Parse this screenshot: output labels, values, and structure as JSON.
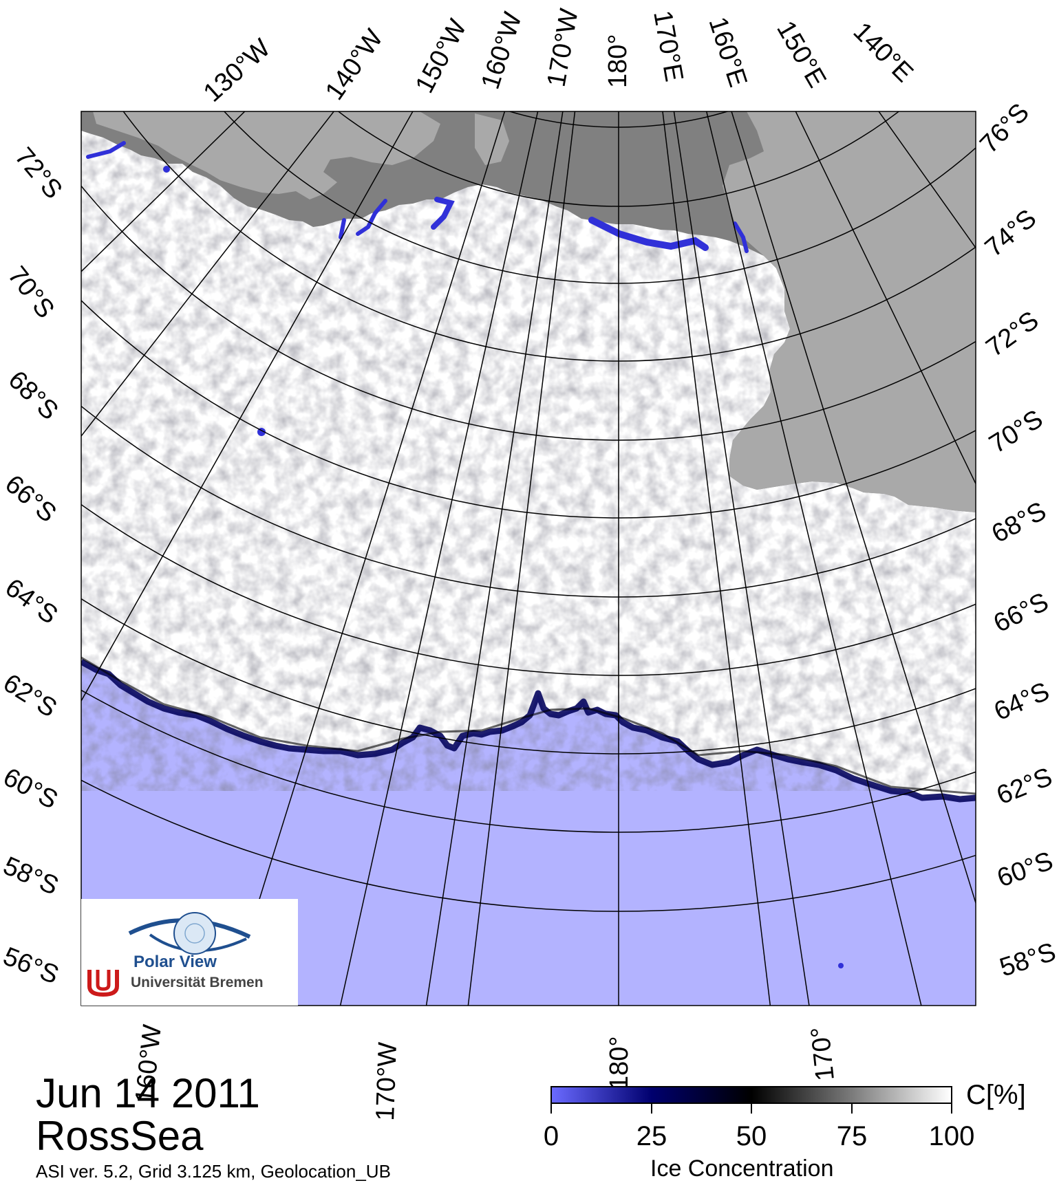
{
  "title": {
    "date": "Jun 14 2011",
    "region": "RossSea",
    "footer": "ASI ver. 5.2,  Grid 3.125 km, Geolocation_UB"
  },
  "map": {
    "projection": "polar stereographic (south)",
    "top_longitude_labels": [
      "130°W",
      "140°W",
      "150°W",
      "160°W",
      "170°W",
      "180°",
      "170°E",
      "160°E",
      "150°E",
      "140°E"
    ],
    "bottom_longitude_labels": [
      "160°W",
      "170°W",
      "180°",
      "170°"
    ],
    "left_latitude_labels": [
      "72°S",
      "70°S",
      "68°S",
      "66°S",
      "64°S",
      "62°S",
      "60°S",
      "58°S",
      "56°S"
    ],
    "right_latitude_labels": [
      "76°S",
      "74°S",
      "72°S",
      "70°S",
      "68°S",
      "66°S",
      "64°S",
      "62°S",
      "60°S",
      "58°S"
    ],
    "colors": {
      "land_dark": "#808080",
      "land_light": "#a9a9a9",
      "open_water": "#b3b3ff",
      "ice_full": "#ffffff",
      "ice_edge": "#00007a",
      "grid": "#000000"
    }
  },
  "legend": {
    "title": "Ice Concentration",
    "unit": "C[%]",
    "ticks": [
      "0",
      "25",
      "50",
      "75",
      "100"
    ],
    "gradient_stops": [
      "#6a6aff",
      "#00006e",
      "#000000",
      "#7a7a7a",
      "#ffffff"
    ]
  },
  "logo": {
    "name": "Polar View",
    "institution": "Universität Bremen"
  }
}
